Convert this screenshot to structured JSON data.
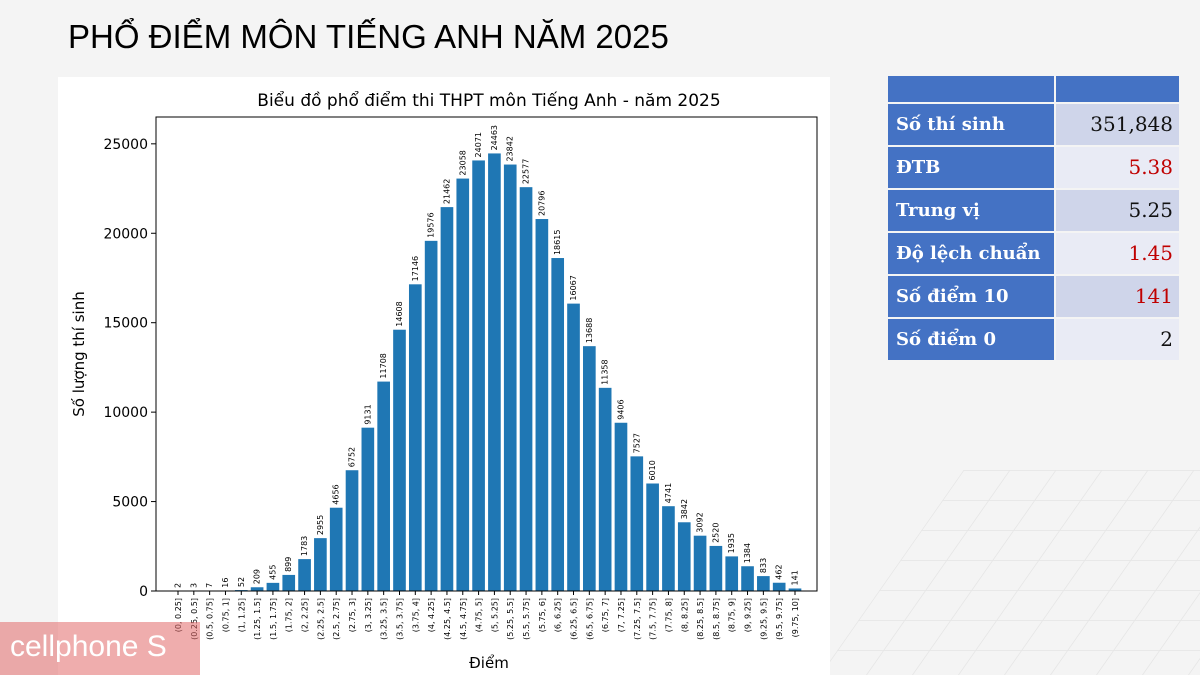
{
  "page": {
    "title": "PHỔ ĐIỂM MÔN TIẾNG ANH NĂM 2025"
  },
  "chart_data": {
    "type": "bar",
    "title": "Biểu đồ phổ điểm thi THPT môn Tiếng Anh - năm 2025",
    "xlabel": "Điểm",
    "ylabel": "Số lượng thí sinh",
    "ylim": [
      0,
      26500
    ],
    "yticks": [
      0,
      5000,
      10000,
      15000,
      20000,
      25000
    ],
    "color": "#1f77b4",
    "grid": false,
    "categories": [
      "(0, 0.25]",
      "(0.25, 0.5]",
      "(0.5, 0.75]",
      "(0.75, 1]",
      "(1, 1.25]",
      "(1.25, 1.5]",
      "(1.5, 1.75]",
      "(1.75, 2]",
      "(2, 2.25]",
      "(2.25, 2.5]",
      "(2.5, 2.75]",
      "(2.75, 3]",
      "(3, 3.25]",
      "(3.25, 3.5]",
      "(3.5, 3.75]",
      "(3.75, 4]",
      "(4, 4.25]",
      "(4.25, 4.5]",
      "(4.5, 4.75]",
      "(4.75, 5]",
      "(5, 5.25]",
      "(5.25, 5.5]",
      "(5.5, 5.75]",
      "(5.75, 6]",
      "(6, 6.25]",
      "(6.25, 6.5]",
      "(6.5, 6.75]",
      "(6.75, 7]",
      "(7, 7.25]",
      "(7.25, 7.5]",
      "(7.5, 7.75]",
      "(7.75, 8]",
      "(8, 8.25]",
      "(8.25, 8.5]",
      "(8.5, 8.75]",
      "(8.75, 9]",
      "(9, 9.25]",
      "(9.25, 9.5]",
      "(9.5, 9.75]",
      "(9.75, 10]"
    ],
    "values": [
      2,
      3,
      7,
      16,
      52,
      209,
      455,
      899,
      1783,
      2955,
      4656,
      6752,
      9131,
      11708,
      14608,
      17146,
      19576,
      21462,
      23058,
      24071,
      24463,
      23842,
      22577,
      20796,
      18615,
      16067,
      13688,
      11358,
      9406,
      7527,
      6010,
      4741,
      3842,
      3092,
      2520,
      1935,
      1384,
      833,
      462,
      141
    ]
  },
  "stats": {
    "header": {
      "label": "",
      "value": ""
    },
    "rows": [
      {
        "label": "Số thí sinh",
        "value": "351,848",
        "value_color": "#111111"
      },
      {
        "label": "ĐTB",
        "value": "5.38",
        "value_color": "#c00000"
      },
      {
        "label": "Trung vị",
        "value": "5.25",
        "value_color": "#111111"
      },
      {
        "label": "Độ lệch chuẩn",
        "value": "1.45",
        "value_color": "#c00000"
      },
      {
        "label": "Số điểm 10",
        "value": "141",
        "value_color": "#c00000"
      },
      {
        "label": "Số điểm 0",
        "value": "2",
        "value_color": "#111111"
      }
    ]
  },
  "logo": {
    "text": "cellphone S"
  }
}
